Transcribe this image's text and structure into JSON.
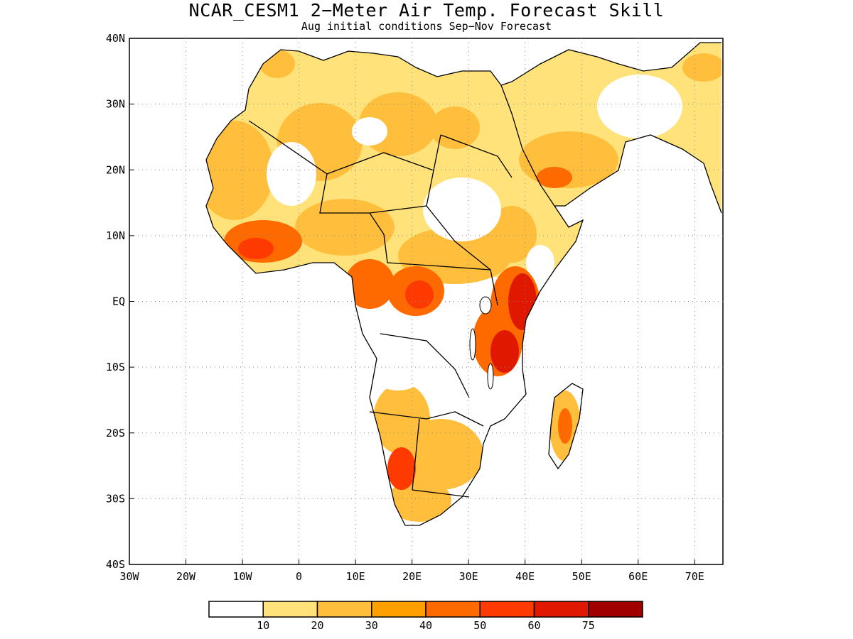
{
  "header": {
    "title": "NCAR_CESM1 2−Meter Air Temp. Forecast Skill",
    "subtitle": "Aug initial conditions  Sep−Nov Forecast"
  },
  "map": {
    "lon_range": [
      -30,
      75
    ],
    "lat_range": [
      -40,
      40
    ],
    "x_ticks": [
      "30W",
      "20W",
      "10W",
      "0",
      "10E",
      "20E",
      "30E",
      "40E",
      "50E",
      "60E",
      "70E"
    ],
    "y_ticks": [
      "40N",
      "30N",
      "20N",
      "10N",
      "EQ",
      "10S",
      "20S",
      "30S",
      "40S"
    ]
  },
  "colorbar": {
    "colors": [
      "#ffffff",
      "#ffe27a",
      "#ffbf3c",
      "#ffa000",
      "#ff6a00",
      "#ff3a00",
      "#e01800",
      "#a00000"
    ],
    "labels": [
      "10",
      "20",
      "30",
      "40",
      "50",
      "60",
      "75"
    ]
  }
}
